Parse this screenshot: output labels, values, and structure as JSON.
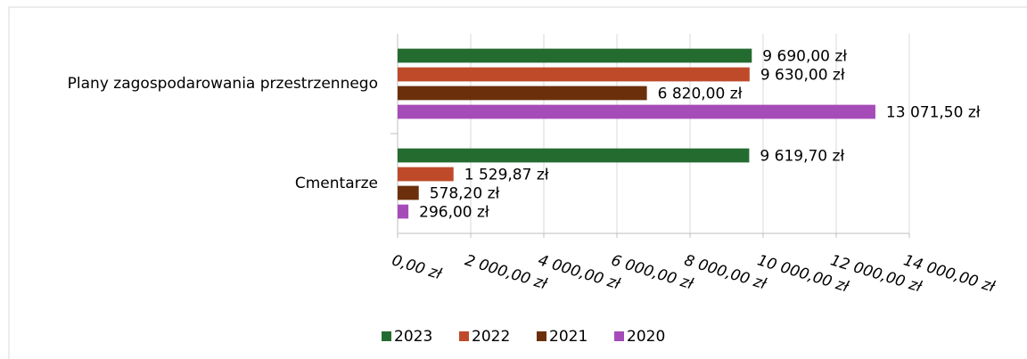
{
  "chart_data": {
    "type": "hbar",
    "categories": [
      "Plany zagospodarowania przestrzennego",
      "Cmentarze"
    ],
    "series": [
      {
        "name": "2023",
        "color": "#246b30",
        "values": [
          9690,
          9619.7
        ],
        "value_labels": [
          "9 690,00 zł",
          "9 619,70 zł"
        ]
      },
      {
        "name": "2022",
        "color": "#bf4a2a",
        "values": [
          9630,
          1529.87
        ],
        "value_labels": [
          "9 630,00 zł",
          "1 529,87 zł"
        ]
      },
      {
        "name": "2021",
        "color": "#6b300b",
        "values": [
          6820,
          578.2
        ],
        "value_labels": [
          "6 820,00 zł",
          "578,20 zł"
        ]
      },
      {
        "name": "2020",
        "color": "#a64cb9",
        "values": [
          13071.5,
          296
        ],
        "value_labels": [
          "13 071,50 zł",
          "296,00 zł"
        ]
      }
    ],
    "xlim": [
      0,
      14000
    ],
    "xticks": [
      {
        "value": 0,
        "label": "0,00 zł"
      },
      {
        "value": 2000,
        "label": "2 000,00 zł"
      },
      {
        "value": 4000,
        "label": "4 000,00 zł"
      },
      {
        "value": 6000,
        "label": "6 000,00 zł"
      },
      {
        "value": 8000,
        "label": "8 000,00 zł"
      },
      {
        "value": 10000,
        "label": "10 000,00 zł"
      },
      {
        "value": 12000,
        "label": "12 000,00 zł"
      },
      {
        "value": 14000,
        "label": "14 000,00 zł"
      }
    ],
    "grid": true,
    "legend": "bottom"
  }
}
